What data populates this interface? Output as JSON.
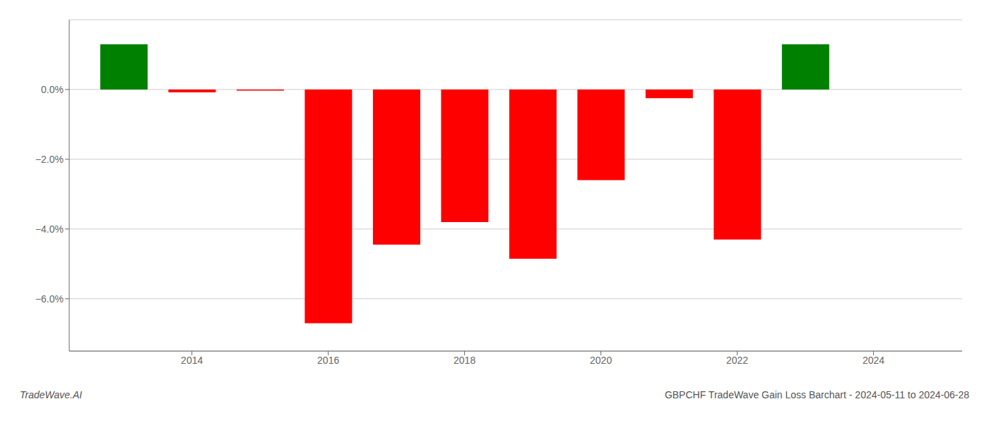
{
  "chart_data": {
    "type": "bar",
    "x": [
      2013,
      2014,
      2015,
      2016,
      2017,
      2018,
      2019,
      2020,
      2021,
      2022,
      2023
    ],
    "values": [
      1.3,
      -0.08,
      -0.03,
      -6.7,
      -4.45,
      -3.8,
      -4.85,
      -2.6,
      -0.25,
      -4.3,
      1.3
    ],
    "colors": [
      "#008000",
      "#ff0000",
      "#ff0000",
      "#ff0000",
      "#ff0000",
      "#ff0000",
      "#ff0000",
      "#ff0000",
      "#ff0000",
      "#ff0000",
      "#008000"
    ],
    "xlim": [
      2012.2,
      2025.3
    ],
    "xticks": [
      2014,
      2016,
      2018,
      2020,
      2022,
      2024
    ],
    "ylim": [
      -7.5,
      2.0
    ],
    "yticks": [
      {
        "value": 0.0,
        "label": "0.0%"
      },
      {
        "value": -2.0,
        "label": "−2.0%"
      },
      {
        "value": -4.0,
        "label": "−4.0%"
      },
      {
        "value": -6.0,
        "label": "−6.0%"
      }
    ],
    "grid": true,
    "annotations": [
      "TradeWave.AI",
      "GBPCHF TradeWave Gain Loss Barchart - 2024-05-11 to 2024-06-28"
    ]
  }
}
